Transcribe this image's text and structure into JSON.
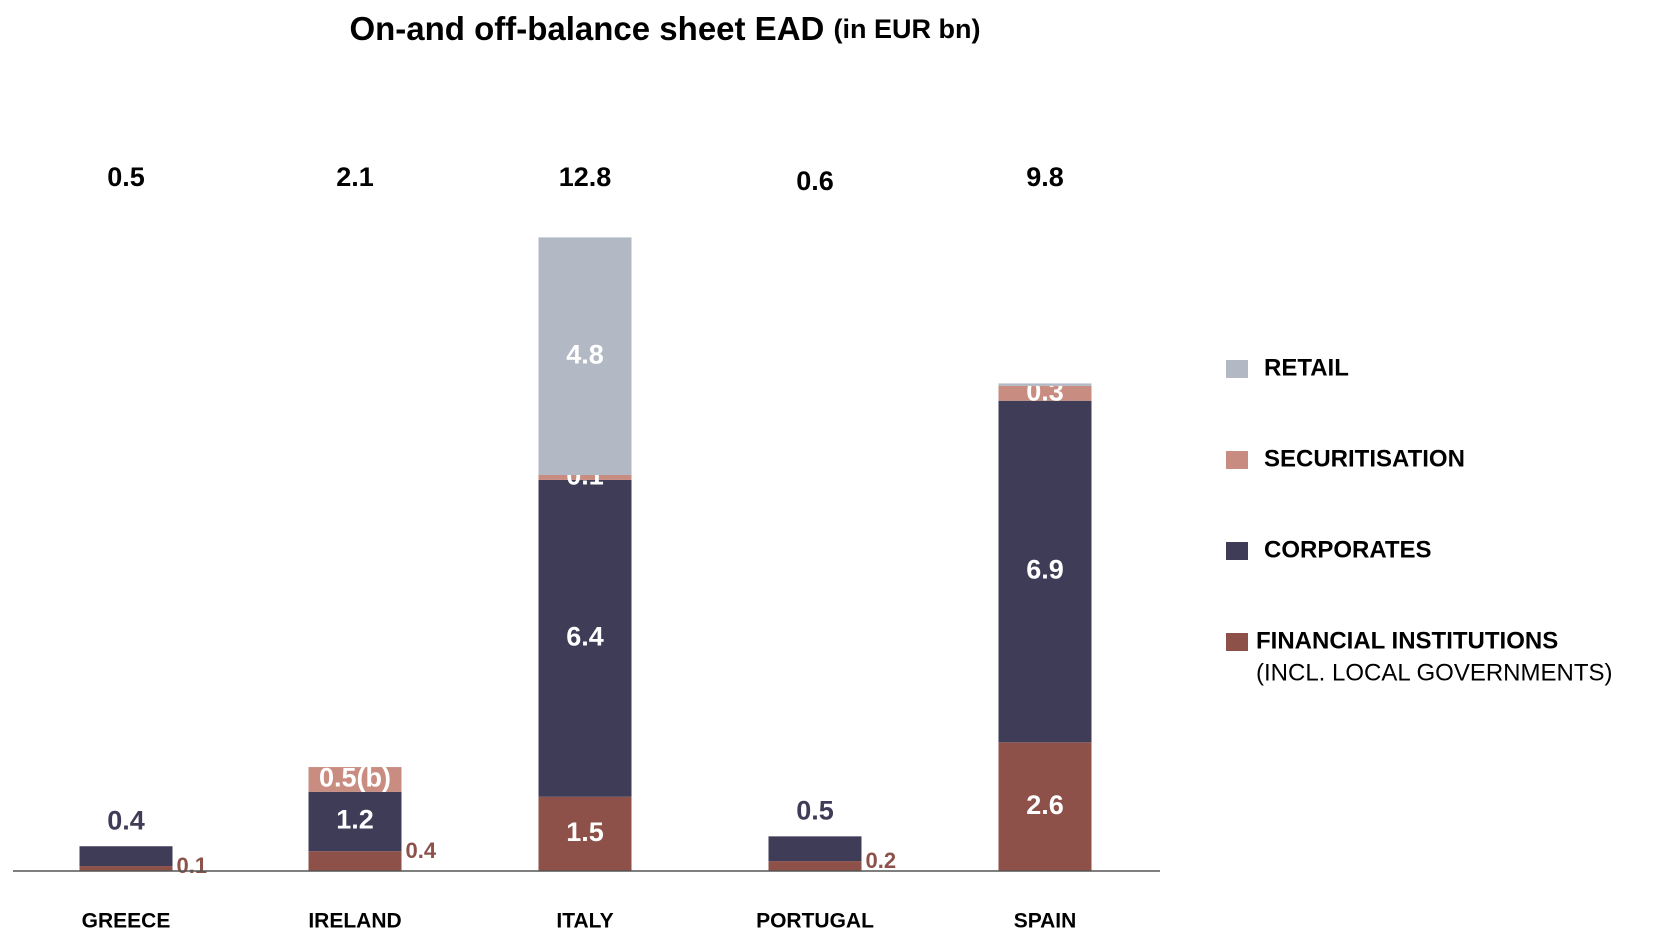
{
  "chart_data": {
    "type": "stacked_bar",
    "title": "On-and off-balance sheet EAD",
    "title_unit": "(in EUR bn)",
    "categories": [
      "GREECE",
      "IRELAND",
      "ITALY",
      "PORTUGAL",
      "SPAIN"
    ],
    "totals": [
      0.5,
      2.1,
      12.8,
      0.6,
      9.8
    ],
    "series": [
      {
        "name": "FINANCIAL INSTITUTIONS",
        "note": "(INCL. LOCAL GOVERNMENTS)",
        "color": "#8e5149",
        "values": [
          0.1,
          0.4,
          1.5,
          0.2,
          2.6
        ]
      },
      {
        "name": "CORPORATES",
        "color": "#3f3c58",
        "values": [
          0.4,
          1.2,
          6.4,
          0.5,
          6.9
        ]
      },
      {
        "name": "SECURITISATION",
        "color": "#c98c80",
        "values": [
          null,
          0.5,
          0.1,
          null,
          0.3
        ],
        "value_labels": [
          null,
          "0.5(b)",
          "0.1",
          null,
          "0.3"
        ]
      },
      {
        "name": "RETAIL",
        "color": "#b2b9c5",
        "values": [
          null,
          null,
          4.8,
          null,
          0.05
        ]
      }
    ],
    "ylim": [
      0,
      14
    ]
  }
}
